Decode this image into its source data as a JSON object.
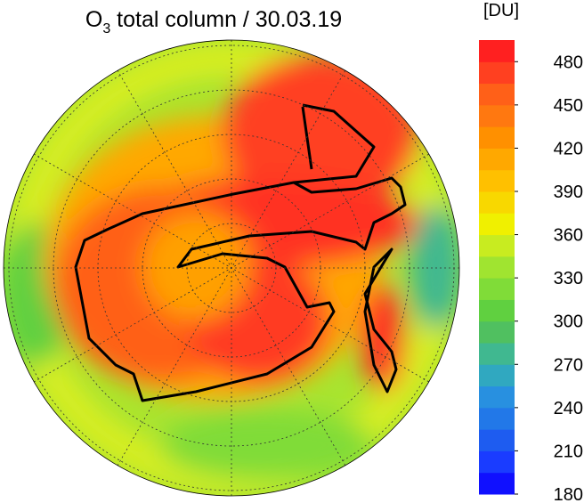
{
  "title": {
    "base": "O",
    "subscript": "3",
    "rest": " total column / 30.03.19"
  },
  "colorbar": {
    "unit": "[DU]",
    "clim": [
      180,
      495
    ],
    "ticks": [
      180,
      210,
      240,
      270,
      300,
      330,
      360,
      390,
      420,
      450,
      480
    ],
    "colors": [
      "#1010ff",
      "#1a3cff",
      "#1e5cf0",
      "#2278e8",
      "#2890e0",
      "#30a8c0",
      "#40b890",
      "#50c060",
      "#60d040",
      "#80dc38",
      "#a0e430",
      "#c8ec20",
      "#f0f000",
      "#f8d800",
      "#ffc000",
      "#ffa800",
      "#ff9000",
      "#ff7810",
      "#ff6018",
      "#ff4020",
      "#ff2020"
    ]
  }
}
